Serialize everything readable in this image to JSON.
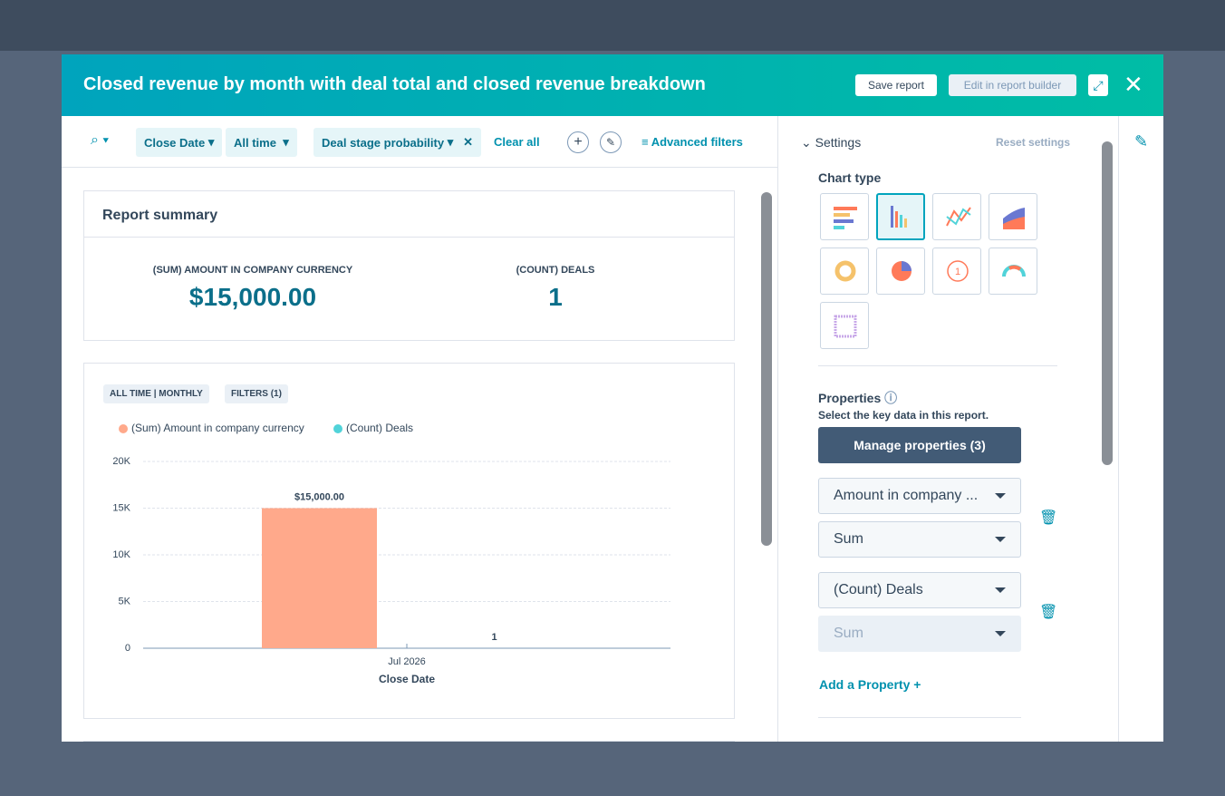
{
  "modal": {
    "title": "Closed revenue by month with deal total and closed revenue breakdown",
    "buttons": [
      "Save report",
      "Edit in report builder"
    ]
  },
  "filters": {
    "items": [
      "Close Date",
      "All time",
      "Deal stage probability"
    ],
    "clear": "Clear all",
    "advanced": "Advanced filters"
  },
  "summary": {
    "title": "Report summary",
    "metrics": [
      {
        "label": "(SUM) AMOUNT IN COMPANY CURRENCY",
        "value": "$15,000.00"
      },
      {
        "label": "(COUNT) DEALS",
        "value": "1"
      }
    ]
  },
  "chart_tags": [
    "ALL TIME | MONTHLY",
    "FILTERS (1)"
  ],
  "chart_data": {
    "type": "bar",
    "categories": [
      "Jul 2026"
    ],
    "xlabel": "Close Date",
    "series": [
      {
        "name": "(Sum) Amount in company currency",
        "color": "#ffa98b",
        "values": [
          15000
        ],
        "value_labels": [
          "$15,000.00"
        ]
      },
      {
        "name": "(Count) Deals",
        "color": "#51d3d9",
        "values": [
          1
        ]
      }
    ],
    "ylim": [
      0,
      20000
    ],
    "yticks": [
      0,
      {
        "value": 5000,
        "label": "5K"
      },
      {
        "value": 10000,
        "label": "10K"
      },
      {
        "value": 15000,
        "label": "15K"
      },
      {
        "value": 20000,
        "label": "20K"
      }
    ],
    "grid": true
  },
  "settings": {
    "title": "Settings",
    "reset": "Reset settings",
    "chart_type": "Chart type",
    "properties": "Properties",
    "properties_help": "Select the key data in this report.",
    "manage": "Manage properties (3)",
    "dropdowns": [
      "Amount in company ...",
      "Sum",
      "(Count) Deals",
      "Sum"
    ],
    "add": "Add a Property +"
  }
}
